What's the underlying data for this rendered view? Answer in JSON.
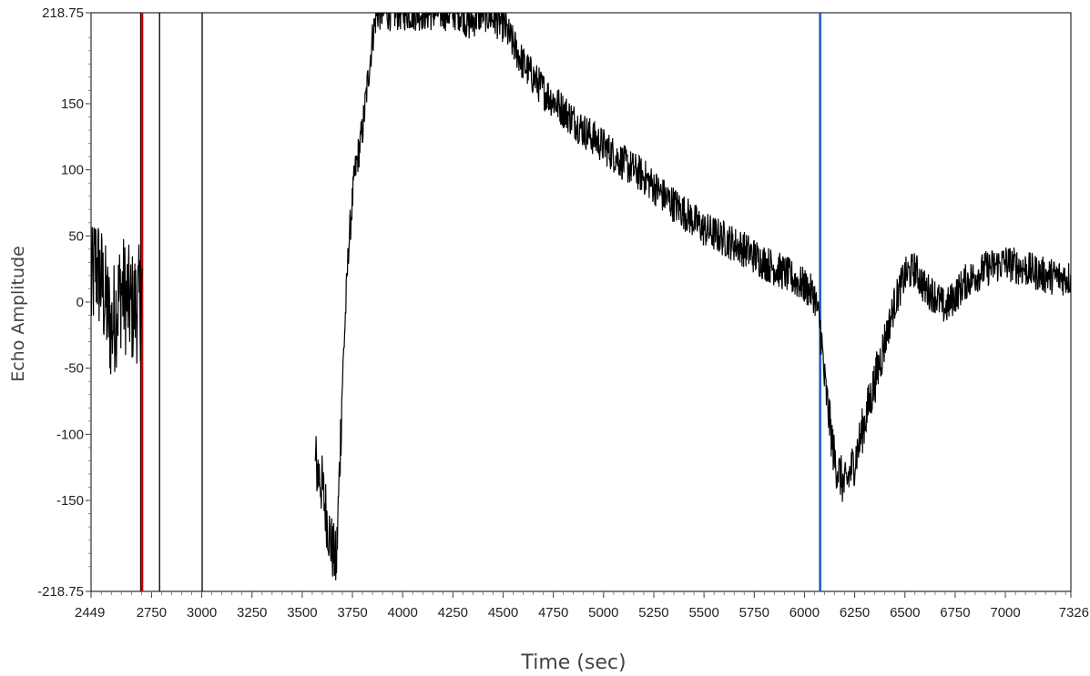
{
  "chart_data": {
    "type": "line",
    "title": "",
    "xlabel": "Time (sec)",
    "ylabel": "Echo Amplitude",
    "xlim": [
      2449,
      7326
    ],
    "ylim": [
      -218.75,
      218.75
    ],
    "x_tick_labels": [
      "2449",
      "2750",
      "3000",
      "3250",
      "3500",
      "3750",
      "4000",
      "4250",
      "4500",
      "4750",
      "5000",
      "5250",
      "5500",
      "5750",
      "6000",
      "6250",
      "6500",
      "6750",
      "7000",
      "7326"
    ],
    "y_tick_labels": [
      "218.75",
      "150",
      "100",
      "50",
      "0",
      "-50",
      "-100",
      "-150",
      "-218.75"
    ],
    "grid": false,
    "cursors": [
      {
        "x": 2696,
        "color": "#000000"
      },
      {
        "x": 2703,
        "color": "#cc0000"
      },
      {
        "x": 2790,
        "color": "#000000"
      },
      {
        "x": 3002,
        "color": "#000000"
      },
      {
        "x": 6078,
        "color": "#1f5fc0"
      }
    ],
    "series": [
      {
        "color": "#000000",
        "x": [
          2449,
          2470,
          2500,
          2550,
          2600,
          2650,
          2700,
          2705,
          3565,
          3600,
          3640,
          3670,
          3700,
          3730,
          3760,
          3800,
          3850,
          3870,
          3900,
          3940,
          4000,
          4100,
          4200,
          4300,
          4320,
          4400,
          4500,
          4600,
          4700,
          4800,
          4900,
          5000,
          5100,
          5200,
          5300,
          5400,
          5500,
          5600,
          5700,
          5800,
          5900,
          6000,
          6050,
          6080,
          6100,
          6150,
          6200,
          6250,
          6300,
          6350,
          6400,
          6450,
          6500,
          6550,
          6600,
          6650,
          6700,
          6750,
          6800,
          6900,
          7000,
          7100,
          7200,
          7326
        ],
        "y": [
          5,
          30,
          15,
          -20,
          10,
          -5,
          0,
          10,
          -120,
          -140,
          -180,
          -200,
          -60,
          40,
          95,
          130,
          200,
          218.75,
          218.75,
          218.75,
          218.75,
          218.75,
          218.75,
          218.75,
          210,
          218.75,
          210,
          180,
          160,
          145,
          130,
          118,
          105,
          95,
          80,
          68,
          55,
          48,
          40,
          30,
          22,
          12,
          5,
          -20,
          -60,
          -120,
          -140,
          -120,
          -90,
          -60,
          -30,
          0,
          20,
          25,
          10,
          5,
          -5,
          5,
          15,
          25,
          30,
          25,
          20,
          18
        ]
      }
    ]
  }
}
